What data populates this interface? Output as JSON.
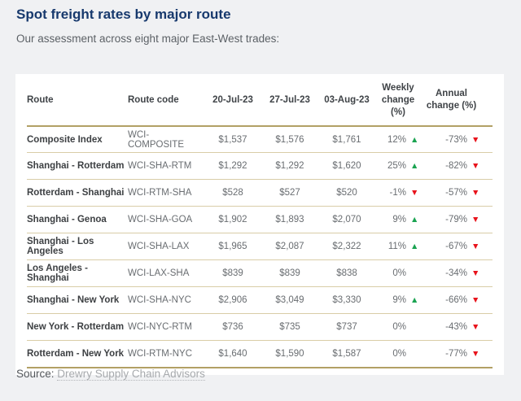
{
  "page": {
    "title": "Spot freight rates by major route",
    "subtitle": "Our assessment across eight major East-West trades:",
    "source_label": "Source:",
    "source_link": "Drewry Supply Chain Advisors"
  },
  "colors": {
    "page_background": "#f0f1f3",
    "card_background": "#ffffff",
    "title_navy": "#17396d",
    "gold_rule": "#b2a065",
    "gold_divider": "#d9cda7",
    "trend_up_green": "#1aa351",
    "trend_down_red": "#e8131c"
  },
  "icons": {
    "trend_up": "▲",
    "trend_down": "▼"
  },
  "chart_data": {
    "type": "table",
    "title": "Spot freight rates by major route",
    "subtitle": "Our assessment across eight major East-West trades:",
    "headers": {
      "route": "Route",
      "route_code": "Route code",
      "dates": [
        "20-Jul-23",
        "27-Jul-23",
        "03-Aug-23"
      ],
      "weekly": [
        "Weekly",
        "change (%)"
      ],
      "annual": [
        "Annual",
        "change (%)"
      ]
    },
    "rows": [
      {
        "route": "Composite Index",
        "code": "WCI-COMPOSITE",
        "rates": [
          "$1,537",
          "$1,576",
          "$1,761"
        ],
        "weekly_change": "12%",
        "weekly_trend": "up",
        "annual_change": "-73%",
        "annual_trend": "down"
      },
      {
        "route": "Shanghai - Rotterdam",
        "code": "WCI-SHA-RTM",
        "rates": [
          "$1,292",
          "$1,292",
          "$1,620"
        ],
        "weekly_change": "25%",
        "weekly_trend": "up",
        "annual_change": "-82%",
        "annual_trend": "down"
      },
      {
        "route": "Rotterdam - Shanghai",
        "code": "WCI-RTM-SHA",
        "rates": [
          "$528",
          "$527",
          "$520"
        ],
        "weekly_change": "-1%",
        "weekly_trend": "down",
        "annual_change": "-57%",
        "annual_trend": "down"
      },
      {
        "route": "Shanghai - Genoa",
        "code": "WCI-SHA-GOA",
        "rates": [
          "$1,902",
          "$1,893",
          "$2,070"
        ],
        "weekly_change": "9%",
        "weekly_trend": "up",
        "annual_change": "-79%",
        "annual_trend": "down"
      },
      {
        "route": "Shanghai - Los Angeles",
        "code": "WCI-SHA-LAX",
        "rates": [
          "$1,965",
          "$2,087",
          "$2,322"
        ],
        "weekly_change": "11%",
        "weekly_trend": "up",
        "annual_change": "-67%",
        "annual_trend": "down"
      },
      {
        "route": "Los Angeles - Shanghai",
        "code": "WCI-LAX-SHA",
        "rates": [
          "$839",
          "$839",
          "$838"
        ],
        "weekly_change": "0%",
        "weekly_trend": "flat",
        "annual_change": "-34%",
        "annual_trend": "down"
      },
      {
        "route": "Shanghai - New York",
        "code": "WCI-SHA-NYC",
        "rates": [
          "$2,906",
          "$3,049",
          "$3,330"
        ],
        "weekly_change": "9%",
        "weekly_trend": "up",
        "annual_change": "-66%",
        "annual_trend": "down"
      },
      {
        "route": "New York - Rotterdam",
        "code": "WCI-NYC-RTM",
        "rates": [
          "$736",
          "$735",
          "$737"
        ],
        "weekly_change": "0%",
        "weekly_trend": "flat",
        "annual_change": "-43%",
        "annual_trend": "down"
      },
      {
        "route": "Rotterdam - New York",
        "code": "WCI-RTM-NYC",
        "rates": [
          "$1,640",
          "$1,590",
          "$1,587"
        ],
        "weekly_change": "0%",
        "weekly_trend": "flat",
        "annual_change": "-77%",
        "annual_trend": "down"
      }
    ]
  }
}
